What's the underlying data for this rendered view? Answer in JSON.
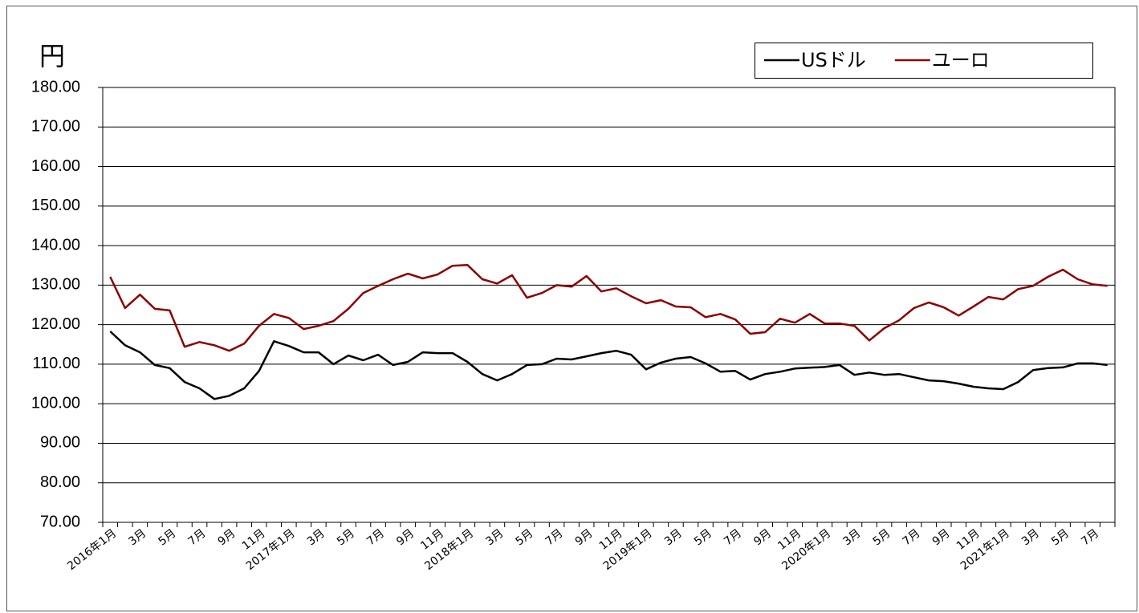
{
  "chart_data": {
    "type": "line",
    "y_label": "円",
    "categories": [
      "2016年1月",
      null,
      "3月",
      null,
      "5月",
      null,
      "7月",
      null,
      "9月",
      null,
      "11月",
      null,
      "2017年1月",
      null,
      "3月",
      null,
      "5月",
      null,
      "7月",
      null,
      "9月",
      null,
      "11月",
      null,
      "2018年1月",
      null,
      "3月",
      null,
      "5月",
      null,
      "7月",
      null,
      "9月",
      null,
      "11月",
      null,
      "2019年1月",
      null,
      "3月",
      null,
      "5月",
      null,
      "7月",
      null,
      "9月",
      null,
      "11月",
      null,
      "2020年1月",
      null,
      "3月",
      null,
      "5月",
      null,
      "7月",
      null,
      "9月",
      null,
      "11月",
      null,
      "2021年1月",
      null,
      "3月",
      null,
      "5月",
      null,
      "7月",
      null
    ],
    "series": [
      {
        "name": "USドル",
        "color": "#000000",
        "values": [
          118.3,
          114.8,
          113.0,
          109.8,
          109.0,
          105.5,
          103.9,
          101.2,
          102.0,
          103.9,
          108.3,
          115.8,
          114.6,
          113.0,
          113.0,
          110.0,
          112.2,
          111.0,
          112.4,
          109.8,
          110.6,
          113.0,
          112.8,
          112.8,
          110.6,
          107.5,
          105.9,
          107.5,
          109.8,
          110.0,
          111.4,
          111.2,
          112.0,
          112.8,
          113.4,
          112.4,
          108.7,
          110.4,
          111.4,
          111.8,
          110.2,
          108.1,
          108.3,
          106.1,
          107.5,
          108.1,
          108.9,
          109.1,
          109.3,
          109.8,
          107.3,
          107.9,
          107.3,
          107.5,
          106.7,
          105.9,
          105.7,
          105.1,
          104.3,
          103.9,
          103.7,
          105.5,
          108.5,
          109.0,
          109.2,
          110.2,
          110.2,
          109.8
        ]
      },
      {
        "name": "ユーロ",
        "color": "#8b0000",
        "values": [
          132.1,
          124.2,
          127.6,
          124.0,
          123.6,
          114.4,
          115.6,
          114.8,
          113.4,
          115.2,
          119.7,
          122.7,
          121.7,
          118.9,
          119.7,
          120.9,
          124.0,
          128.0,
          129.8,
          131.5,
          132.9,
          131.7,
          132.7,
          134.9,
          135.1,
          131.5,
          130.4,
          132.5,
          126.8,
          128.0,
          130.0,
          129.6,
          132.3,
          128.4,
          129.2,
          127.2,
          125.4,
          126.2,
          124.6,
          124.4,
          121.9,
          122.7,
          121.3,
          117.7,
          118.1,
          121.5,
          120.5,
          122.7,
          120.3,
          120.3,
          119.7,
          116.0,
          119.1,
          121.1,
          124.2,
          125.6,
          124.4,
          122.3,
          124.6,
          127.0,
          126.4,
          129.0,
          129.8,
          132.1,
          133.9,
          131.5,
          130.2,
          129.8
        ]
      }
    ],
    "ylim": [
      70,
      180
    ],
    "yticks": [
      {
        "value": 70,
        "label": "70.00"
      },
      {
        "value": 80,
        "label": "80.00"
      },
      {
        "value": 90,
        "label": "90.00"
      },
      {
        "value": 100,
        "label": "100.00"
      },
      {
        "value": 110,
        "label": "110.00"
      },
      {
        "value": 120,
        "label": "120.00"
      },
      {
        "value": 130,
        "label": "130.00"
      },
      {
        "value": 140,
        "label": "140.00"
      },
      {
        "value": 150,
        "label": "150.00"
      },
      {
        "value": 160,
        "label": "160.00"
      },
      {
        "value": 170,
        "label": "170.00"
      },
      {
        "value": 180,
        "label": "180.00"
      }
    ],
    "grid": true,
    "legend": "top-right"
  }
}
